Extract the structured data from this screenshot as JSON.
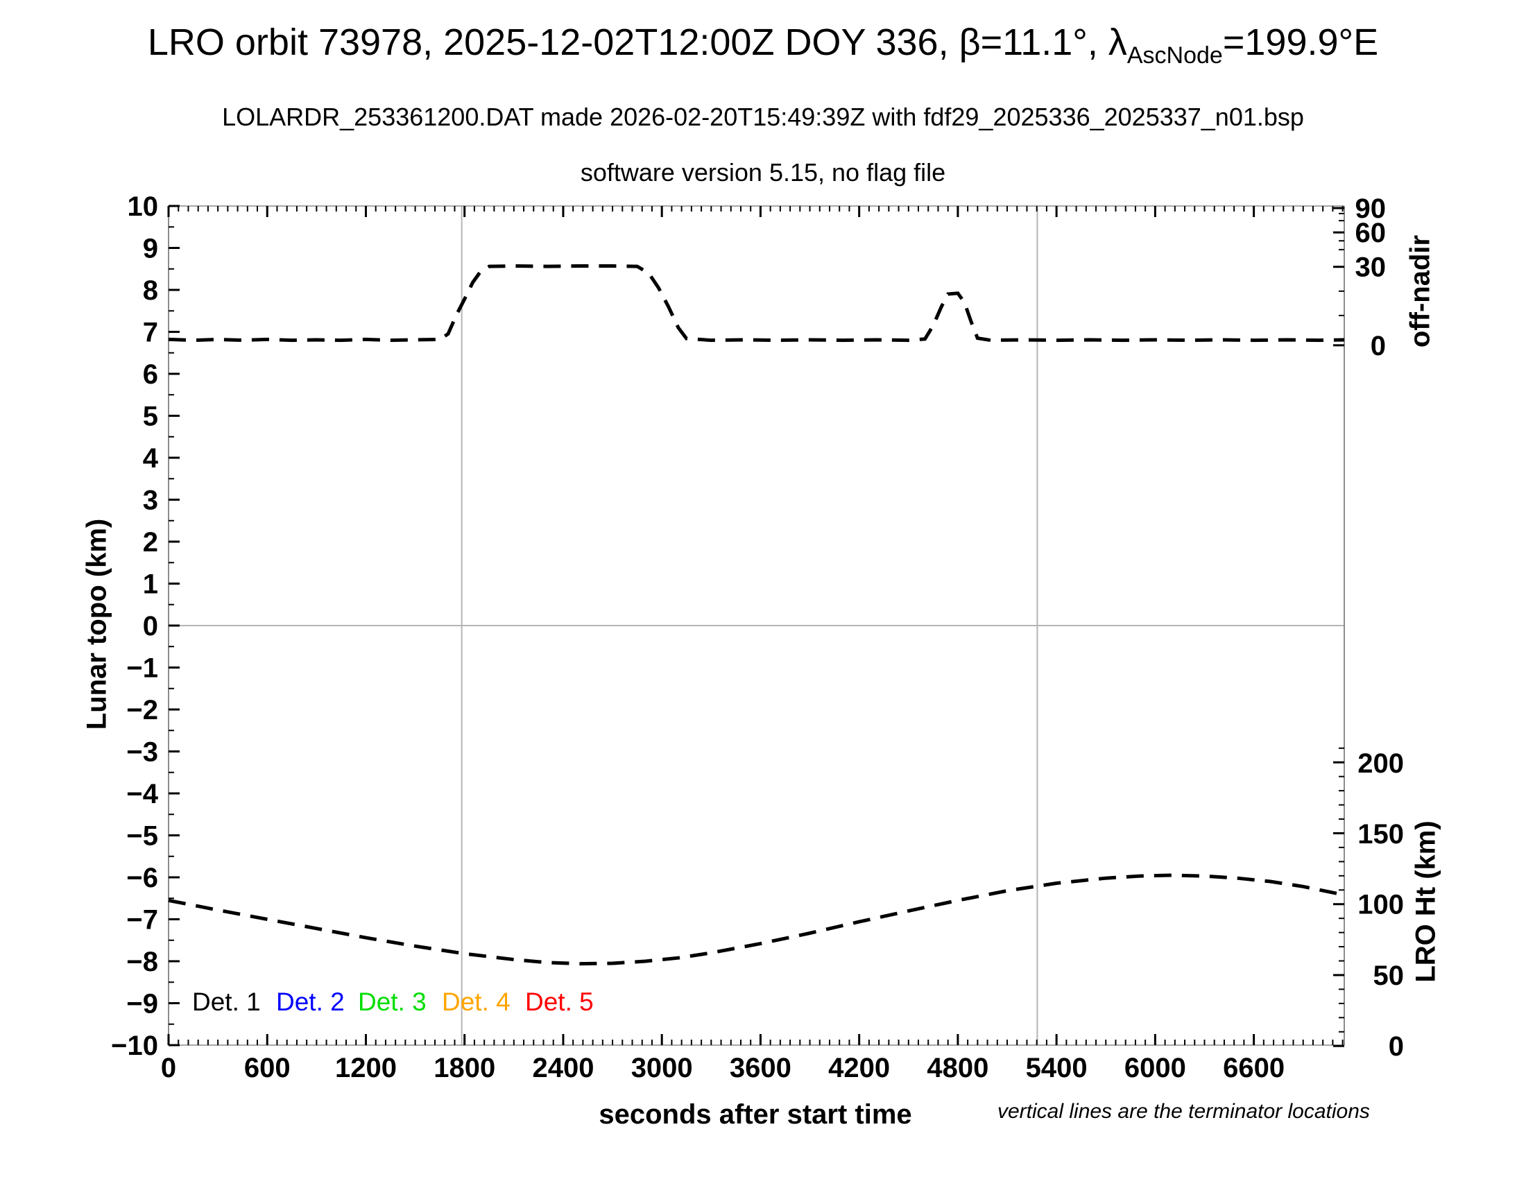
{
  "header": {
    "title_prefix": "LRO orbit 73978, 2025-12-02T12:00Z DOY 336, β=11.1°, λ",
    "title_subscript": "AscNode",
    "title_suffix": "=199.9°E",
    "subtitle": "LOLARDR_253361200.DAT made 2026-02-20T15:49:39Z with fdf29_2025336_2025337_n01.bsp",
    "subsubtitle": "software version 5.15, no flag file"
  },
  "chart_data": {
    "type": "line",
    "title": "LRO orbit 73978, 2025-12-02T12:00Z DOY 336, β=11.1°, λ_AscNode=199.9°E",
    "xlabel": "seconds after start time",
    "ylabel_left": "Lunar topo (km)",
    "ylabel_right_top": "off-nadir",
    "ylabel_right_bottom": "LRO Ht (km)",
    "note": "vertical lines are the terminator locations",
    "grid": "off",
    "x_range_s": [
      0,
      7150
    ],
    "x_major_tick_labels": [
      0,
      600,
      1200,
      1800,
      2400,
      3000,
      3600,
      4200,
      4800,
      5400,
      6000,
      6600
    ],
    "x_minor_step_s": 60,
    "left_axis": {
      "unit": "km",
      "range": [
        -10,
        10
      ],
      "major_step": 1,
      "minor_step": 0.5,
      "major_tick_labels": [
        -10,
        -9,
        -8,
        -7,
        -6,
        -5,
        -4,
        -3,
        -2,
        -1,
        0,
        1,
        2,
        3,
        4,
        5,
        6,
        7,
        8,
        9,
        10
      ]
    },
    "off_nadir_axis": {
      "unit": "deg",
      "labels": [
        {
          "value": 90,
          "topo": 9.95
        },
        {
          "value": 60,
          "topo": 9.37
        },
        {
          "value": 30,
          "topo": 8.55
        },
        {
          "value": 0,
          "topo": 6.68
        }
      ],
      "minor_tick_topo": [
        7.39,
        7.97,
        8.96,
        9.17,
        9.65,
        9.82
      ]
    },
    "lro_ht_axis": {
      "unit": "km",
      "labels": [
        {
          "value": 0,
          "topo": -10.02
        },
        {
          "value": 50,
          "topo": -8.33
        },
        {
          "value": 100,
          "topo": -6.64
        },
        {
          "value": 150,
          "topo": -4.96
        },
        {
          "value": 200,
          "topo": -3.27
        }
      ],
      "minor_step_km": 10,
      "max_tick_km": 210,
      "topo_per_km": 0.0338
    },
    "zero_line_topo": 0,
    "terminator_lines_s": [
      1783,
      5283
    ],
    "series": [
      {
        "name": "off-nadir angle (dashed, read on right off-nadir axis)",
        "color": "#000000",
        "style": "dashed",
        "summary": "baseline ≈3° off-nadir; slew to ≈30° between t≈1700–3150 s; short slew to ≈18° between t≈4600–4920 s",
        "points_t_topo": [
          [
            0,
            6.82
          ],
          [
            150,
            6.8
          ],
          [
            300,
            6.82
          ],
          [
            450,
            6.8
          ],
          [
            600,
            6.82
          ],
          [
            750,
            6.8
          ],
          [
            900,
            6.81
          ],
          [
            1050,
            6.8
          ],
          [
            1200,
            6.82
          ],
          [
            1350,
            6.8
          ],
          [
            1500,
            6.81
          ],
          [
            1650,
            6.82
          ],
          [
            1700,
            6.95
          ],
          [
            1750,
            7.4
          ],
          [
            1800,
            7.78
          ],
          [
            1850,
            8.18
          ],
          [
            1900,
            8.45
          ],
          [
            1950,
            8.56
          ],
          [
            2100,
            8.57
          ],
          [
            2300,
            8.56
          ],
          [
            2500,
            8.57
          ],
          [
            2700,
            8.57
          ],
          [
            2850,
            8.56
          ],
          [
            2920,
            8.4
          ],
          [
            2980,
            8.05
          ],
          [
            3040,
            7.6
          ],
          [
            3100,
            7.1
          ],
          [
            3150,
            6.84
          ],
          [
            3300,
            6.8
          ],
          [
            3500,
            6.81
          ],
          [
            3700,
            6.8
          ],
          [
            3900,
            6.81
          ],
          [
            4100,
            6.8
          ],
          [
            4300,
            6.81
          ],
          [
            4500,
            6.8
          ],
          [
            4600,
            6.83
          ],
          [
            4650,
            7.15
          ],
          [
            4700,
            7.6
          ],
          [
            4740,
            7.9
          ],
          [
            4800,
            7.92
          ],
          [
            4840,
            7.7
          ],
          [
            4880,
            7.25
          ],
          [
            4920,
            6.85
          ],
          [
            5000,
            6.8
          ],
          [
            5200,
            6.81
          ],
          [
            5400,
            6.8
          ],
          [
            5600,
            6.81
          ],
          [
            5800,
            6.8
          ],
          [
            6000,
            6.81
          ],
          [
            6200,
            6.8
          ],
          [
            6400,
            6.81
          ],
          [
            6600,
            6.8
          ],
          [
            6800,
            6.81
          ],
          [
            7000,
            6.8
          ],
          [
            7150,
            6.81
          ]
        ]
      },
      {
        "name": "LRO height (dashed, read on right LRO Ht axis)",
        "color": "#000000",
        "style": "dashed",
        "summary": "≈103 km at t=0, minimum ≈58 km near t≈2500 s, maximum ≈120 km near t≈6000 s, ≈106 km at end",
        "points_t_topo": [
          [
            0,
            -6.55
          ],
          [
            300,
            -6.78
          ],
          [
            600,
            -7.0
          ],
          [
            900,
            -7.22
          ],
          [
            1200,
            -7.44
          ],
          [
            1500,
            -7.64
          ],
          [
            1800,
            -7.82
          ],
          [
            2100,
            -7.96
          ],
          [
            2300,
            -8.03
          ],
          [
            2500,
            -8.06
          ],
          [
            2700,
            -8.05
          ],
          [
            2900,
            -8.0
          ],
          [
            3100,
            -7.92
          ],
          [
            3300,
            -7.8
          ],
          [
            3600,
            -7.58
          ],
          [
            3900,
            -7.33
          ],
          [
            4200,
            -7.06
          ],
          [
            4500,
            -6.8
          ],
          [
            4800,
            -6.55
          ],
          [
            5100,
            -6.32
          ],
          [
            5400,
            -6.14
          ],
          [
            5700,
            -6.02
          ],
          [
            5900,
            -5.97
          ],
          [
            6100,
            -5.95
          ],
          [
            6300,
            -5.97
          ],
          [
            6500,
            -6.02
          ],
          [
            6700,
            -6.1
          ],
          [
            6900,
            -6.22
          ],
          [
            7150,
            -6.42
          ]
        ]
      }
    ],
    "legend": [
      {
        "label": "Det. 1",
        "color": "#000000"
      },
      {
        "label": "Det. 2",
        "color": "#0000ff"
      },
      {
        "label": "Det. 3",
        "color": "#00dd00"
      },
      {
        "label": "Det. 4",
        "color": "#ffa500"
      },
      {
        "label": "Det. 5",
        "color": "#ff0000"
      }
    ],
    "colors": {
      "curve": "#000000",
      "terminator_line": "#b4b4b4",
      "zero_line": "#b4b4b4",
      "axis_border": "#8c8c8c",
      "tick": "#000000"
    }
  }
}
